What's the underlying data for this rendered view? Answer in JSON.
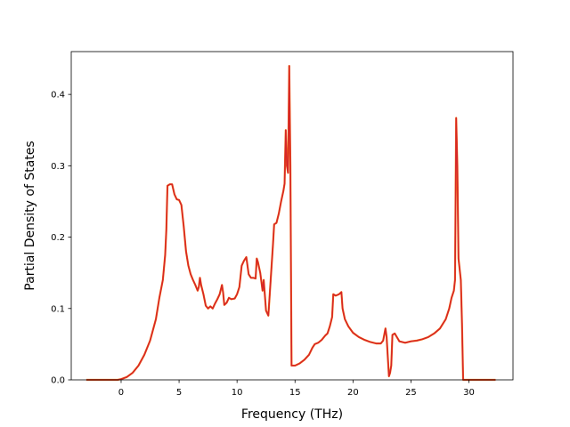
{
  "chart_data": {
    "type": "line",
    "title": "",
    "xlabel": "Frequency (THz)",
    "ylabel": "Partial Density of States",
    "xlim": [
      -4.3,
      33.8
    ],
    "ylim": [
      0.0,
      0.46
    ],
    "xticks": [
      0,
      5,
      10,
      15,
      20,
      25,
      30
    ],
    "yticks": [
      0.0,
      0.1,
      0.2,
      0.3,
      0.4
    ],
    "ytick_labels": [
      "0.0",
      "0.1",
      "0.2",
      "0.3",
      "0.4"
    ],
    "grid": false,
    "legend": "none",
    "colors": {
      "overlay": "#ff7f0e",
      "main": "#d62728",
      "frame": "#000000"
    },
    "series": [
      {
        "values": [
          [
            -3.0,
            0
          ],
          [
            -0.3,
            0
          ],
          [
            0.0,
            0.001
          ],
          [
            0.5,
            0.004
          ],
          [
            1.0,
            0.01
          ],
          [
            1.5,
            0.02
          ],
          [
            2.0,
            0.035
          ],
          [
            2.5,
            0.055
          ],
          [
            3.0,
            0.085
          ],
          [
            3.3,
            0.115
          ],
          [
            3.6,
            0.14
          ],
          [
            3.8,
            0.175
          ],
          [
            3.9,
            0.21
          ],
          [
            4.0,
            0.272
          ],
          [
            4.2,
            0.274
          ],
          [
            4.4,
            0.274
          ],
          [
            4.6,
            0.26
          ],
          [
            4.8,
            0.253
          ],
          [
            5.0,
            0.252
          ],
          [
            5.2,
            0.245
          ],
          [
            5.4,
            0.215
          ],
          [
            5.6,
            0.18
          ],
          [
            5.8,
            0.16
          ],
          [
            6.0,
            0.148
          ],
          [
            6.2,
            0.14
          ],
          [
            6.4,
            0.133
          ],
          [
            6.6,
            0.125
          ],
          [
            6.7,
            0.13
          ],
          [
            6.8,
            0.143
          ],
          [
            6.9,
            0.133
          ],
          [
            7.1,
            0.12
          ],
          [
            7.3,
            0.104
          ],
          [
            7.5,
            0.1
          ],
          [
            7.7,
            0.103
          ],
          [
            7.9,
            0.1
          ],
          [
            8.1,
            0.107
          ],
          [
            8.3,
            0.113
          ],
          [
            8.5,
            0.12
          ],
          [
            8.7,
            0.133
          ],
          [
            8.8,
            0.122
          ],
          [
            8.9,
            0.105
          ],
          [
            9.1,
            0.108
          ],
          [
            9.3,
            0.115
          ],
          [
            9.5,
            0.113
          ],
          [
            9.8,
            0.114
          ],
          [
            10.0,
            0.12
          ],
          [
            10.2,
            0.13
          ],
          [
            10.4,
            0.16
          ],
          [
            10.6,
            0.167
          ],
          [
            10.8,
            0.172
          ],
          [
            11.0,
            0.148
          ],
          [
            11.2,
            0.143
          ],
          [
            11.4,
            0.143
          ],
          [
            11.6,
            0.142
          ],
          [
            11.7,
            0.17
          ],
          [
            11.8,
            0.165
          ],
          [
            12.0,
            0.15
          ],
          [
            12.2,
            0.125
          ],
          [
            12.3,
            0.14
          ],
          [
            12.5,
            0.097
          ],
          [
            12.7,
            0.09
          ],
          [
            12.9,
            0.14
          ],
          [
            13.1,
            0.19
          ],
          [
            13.2,
            0.218
          ],
          [
            13.4,
            0.22
          ],
          [
            13.6,
            0.233
          ],
          [
            13.8,
            0.25
          ],
          [
            14.0,
            0.265
          ],
          [
            14.1,
            0.275
          ],
          [
            14.2,
            0.35
          ],
          [
            14.3,
            0.3
          ],
          [
            14.4,
            0.29
          ],
          [
            14.5,
            0.44
          ],
          [
            14.6,
            0.3
          ],
          [
            14.7,
            0.02
          ],
          [
            15.0,
            0.02
          ],
          [
            15.4,
            0.023
          ],
          [
            15.8,
            0.028
          ],
          [
            16.2,
            0.035
          ],
          [
            16.5,
            0.045
          ],
          [
            16.7,
            0.05
          ],
          [
            17.0,
            0.052
          ],
          [
            17.3,
            0.056
          ],
          [
            17.6,
            0.062
          ],
          [
            17.8,
            0.065
          ],
          [
            18.0,
            0.075
          ],
          [
            18.2,
            0.088
          ],
          [
            18.3,
            0.12
          ],
          [
            18.5,
            0.118
          ],
          [
            18.8,
            0.12
          ],
          [
            19.0,
            0.123
          ],
          [
            19.1,
            0.1
          ],
          [
            19.3,
            0.085
          ],
          [
            19.6,
            0.075
          ],
          [
            20.0,
            0.066
          ],
          [
            20.5,
            0.06
          ],
          [
            21.0,
            0.056
          ],
          [
            21.5,
            0.053
          ],
          [
            22.0,
            0.051
          ],
          [
            22.4,
            0.051
          ],
          [
            22.6,
            0.055
          ],
          [
            22.8,
            0.072
          ],
          [
            22.9,
            0.06
          ],
          [
            23.1,
            0.005
          ],
          [
            23.2,
            0.01
          ],
          [
            23.3,
            0.02
          ],
          [
            23.4,
            0.063
          ],
          [
            23.6,
            0.065
          ],
          [
            24.0,
            0.054
          ],
          [
            24.5,
            0.052
          ],
          [
            25.0,
            0.054
          ],
          [
            25.5,
            0.055
          ],
          [
            26.0,
            0.057
          ],
          [
            26.5,
            0.06
          ],
          [
            27.0,
            0.065
          ],
          [
            27.5,
            0.072
          ],
          [
            28.0,
            0.085
          ],
          [
            28.3,
            0.1
          ],
          [
            28.5,
            0.115
          ],
          [
            28.7,
            0.125
          ],
          [
            28.8,
            0.14
          ],
          [
            28.9,
            0.367
          ],
          [
            29.0,
            0.3
          ],
          [
            29.1,
            0.17
          ],
          [
            29.3,
            0.14
          ],
          [
            29.4,
            0.08
          ],
          [
            29.5,
            0
          ],
          [
            32.3,
            0
          ]
        ]
      }
    ]
  }
}
